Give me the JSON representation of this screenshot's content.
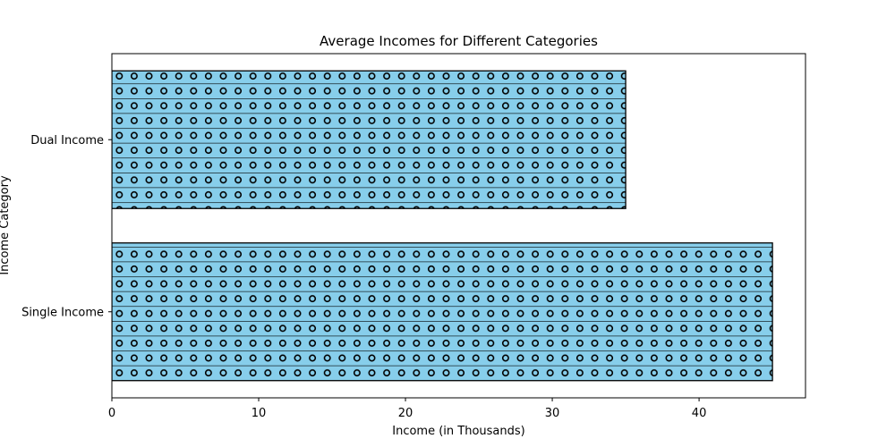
{
  "chart_data": {
    "type": "bar",
    "orientation": "horizontal",
    "title": "Average Incomes for Different Categories",
    "xlabel": "Income (in Thousands)",
    "ylabel": "Income Category",
    "categories": [
      "Single Income",
      "Dual Income"
    ],
    "values": [
      45,
      35
    ],
    "xlim": [
      0,
      47.25
    ],
    "xticks": [
      0,
      10,
      20,
      30,
      40
    ],
    "bar_color": "#87ceeb",
    "edge_color": "#000000",
    "hatch": "o-",
    "grid": false,
    "legend": false
  }
}
